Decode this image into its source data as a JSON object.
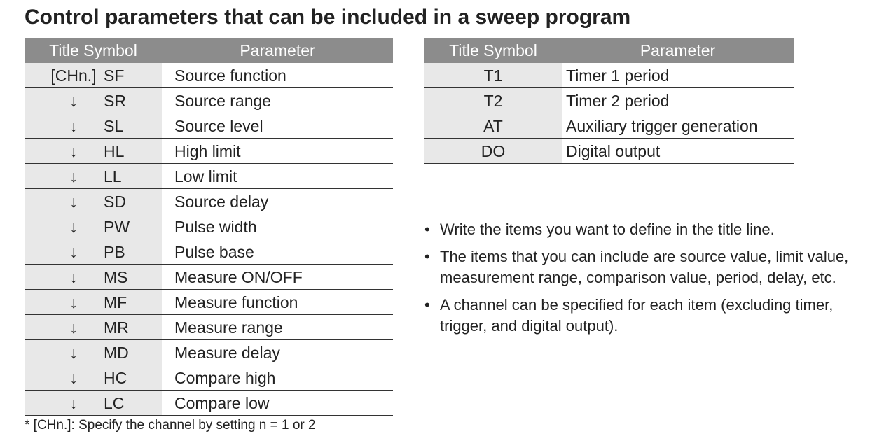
{
  "title": "Control parameters that can be included in a sweep program",
  "left_table": {
    "headers": [
      "Title Symbol",
      "Parameter"
    ],
    "rows": [
      [
        "[CHn.]",
        "SF",
        "Source function"
      ],
      [
        "↓",
        "SR",
        "Source range"
      ],
      [
        "↓",
        "SL",
        "Source level"
      ],
      [
        "↓",
        "HL",
        "High limit"
      ],
      [
        "↓",
        "LL",
        "Low limit"
      ],
      [
        "↓",
        "SD",
        "Source delay"
      ],
      [
        "↓",
        "PW",
        "Pulse width"
      ],
      [
        "↓",
        "PB",
        "Pulse base"
      ],
      [
        "↓",
        "MS",
        "Measure ON/OFF"
      ],
      [
        "↓",
        "MF",
        "Measure function"
      ],
      [
        "↓",
        "MR",
        "Measure range"
      ],
      [
        "↓",
        "MD",
        "Measure delay"
      ],
      [
        "↓",
        "HC",
        "Compare high"
      ],
      [
        "↓",
        "LC",
        "Compare low"
      ]
    ]
  },
  "right_table": {
    "headers": [
      "Title Symbol",
      "Parameter"
    ],
    "rows": [
      [
        "T1",
        "Timer 1 period"
      ],
      [
        "T2",
        "Timer 2 period"
      ],
      [
        "AT",
        "Auxiliary trigger generation"
      ],
      [
        "DO",
        "Digital output"
      ]
    ]
  },
  "notes": [
    "Write the items you want to define in the title line.",
    "The items that you can include are source value, limit value, measurement range, comparison value, period, delay, etc.",
    "A channel can be specified for each item (excluding timer, trigger, and digital output)."
  ],
  "footnote": "* [CHn.]: Specify the channel by setting n = 1 or 2"
}
